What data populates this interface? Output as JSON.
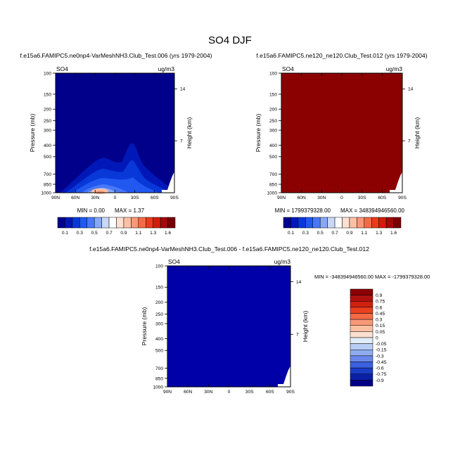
{
  "figure_title": "SO4 DJF",
  "chart_data": [
    {
      "type": "heatmap",
      "id": "p1",
      "title": "f.e15a6.FAMIPC5.ne0np4-VarMeshNH3.Club_Test.006 (yrs 1979-2004)",
      "variable_label": "SO4",
      "units_label": "ug/m3",
      "xlabel": "",
      "ylabel": "Pressure (mb)",
      "y2label": "Height (km)",
      "x_ticks": [
        "90N",
        "60N",
        "30N",
        "0",
        "30S",
        "60S",
        "90S"
      ],
      "y_ticks": [
        "100",
        "150",
        "200",
        "250",
        "300",
        "400",
        "500",
        "700",
        "850",
        "1000"
      ],
      "y2_ticks": [
        "14",
        "7"
      ],
      "min_label": "MIN =  0.00",
      "max_label": "MAX =   1.37",
      "fill_color": "#00008b",
      "xlim": [
        90,
        -90
      ],
      "ylim": [
        100,
        1000
      ]
    },
    {
      "type": "heatmap",
      "id": "p2",
      "title": "f.e15a6.FAMIPC5.ne120_ne120.Club_Test.012 (yrs 1979-2004)",
      "variable_label": "SO4",
      "units_label": "ug/m3",
      "xlabel": "",
      "ylabel": "Pressure (mb)",
      "y2label": "Height (km)",
      "x_ticks": [
        "90N",
        "60N",
        "30N",
        "0",
        "30S",
        "60S",
        "90S"
      ],
      "y_ticks": [
        "100",
        "150",
        "200",
        "250",
        "300",
        "400",
        "500",
        "700",
        "850",
        "1000"
      ],
      "y2_ticks": [
        "14",
        "7"
      ],
      "min_label": "MIN = 1799379328.00",
      "max_label": "MAX = 348394946560.00",
      "fill_color": "#8b0000",
      "xlim": [
        90,
        -90
      ],
      "ylim": [
        100,
        1000
      ]
    },
    {
      "type": "heatmap",
      "id": "p3",
      "title": "f.e15a6.FAMIPC5.ne0np4-VarMeshNH3.Club_Test.006 - f.e15a6.FAMIPC5.ne120_ne120.Club_Test.012",
      "variable_label": "SO4",
      "units_label": "ug/m3",
      "xlabel": "",
      "ylabel": "Pressure (mb)",
      "y2label": "Height (km)",
      "x_ticks": [
        "90N",
        "60N",
        "30N",
        "0",
        "30S",
        "60S",
        "90S"
      ],
      "y_ticks": [
        "100",
        "150",
        "200",
        "250",
        "300",
        "400",
        "500",
        "700",
        "850",
        "1000"
      ],
      "y2_ticks": [
        "14",
        "7"
      ],
      "min_label": "MIN = -348394946560.00",
      "max_label": "MAX = -1799379328.00",
      "fill_color": "#0000a8",
      "xlim": [
        90,
        -90
      ],
      "ylim": [
        100,
        1000
      ]
    }
  ],
  "colorbar_top": {
    "labels": [
      "0.1",
      "0.3",
      "0.5",
      "0.7",
      "0.9",
      "1.1",
      "1.3",
      "1.6"
    ],
    "colors": [
      "#000090",
      "#0018b8",
      "#0838d8",
      "#2058f0",
      "#4878f8",
      "#88a8f8",
      "#c8d8f8",
      "#ffffff",
      "#fde0cf",
      "#fcc0a4",
      "#f89878",
      "#f46a45",
      "#ea3c1c",
      "#d41c0c",
      "#a40808",
      "#780000"
    ]
  },
  "colorbar_diff": {
    "labels": [
      "0.9",
      "0.75",
      "0.6",
      "0.45",
      "0.3",
      "0.15",
      "0.05",
      "0",
      "-0.05",
      "-0.15",
      "-0.3",
      "-0.45",
      "-0.6",
      "-0.75",
      "-0.9"
    ],
    "colors": [
      "#8b0000",
      "#b01010",
      "#d02010",
      "#ea4020",
      "#f46a45",
      "#f89878",
      "#fcbfa0",
      "#fde0cf",
      "#e0ecf8",
      "#b8cdf5",
      "#90acf0",
      "#6888ec",
      "#3c60e0",
      "#1a3cc8",
      "#0a20a8",
      "#000088"
    ]
  }
}
